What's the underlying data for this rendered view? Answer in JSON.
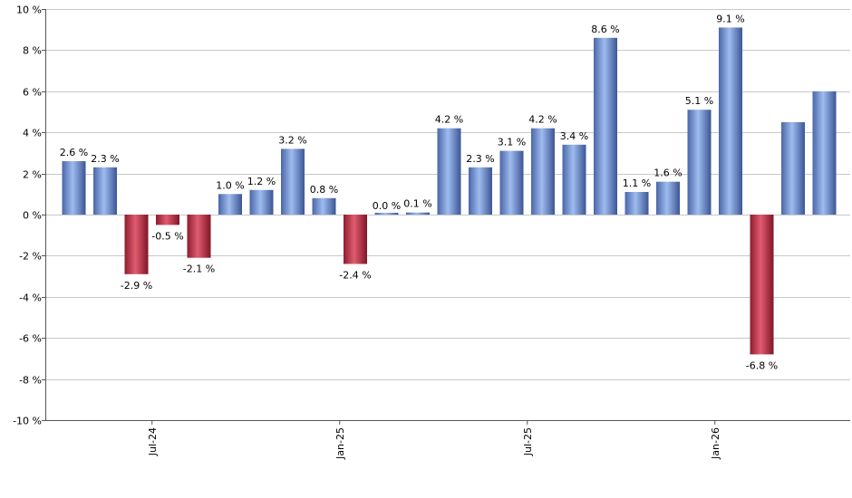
{
  "chart_data": {
    "type": "bar",
    "title": "",
    "xlabel": "",
    "ylabel": "",
    "ylim": [
      -10,
      10
    ],
    "y_ticks": [
      -10,
      -8,
      -6,
      -4,
      -2,
      0,
      2,
      4,
      6,
      8,
      10
    ],
    "y_tick_suffix": " %",
    "grid": true,
    "legend": "none",
    "x_tick_labels": [
      {
        "label": "Jul-24",
        "index": 2.5
      },
      {
        "label": "Jan-25",
        "index": 8.5
      },
      {
        "label": "Jul-25",
        "index": 14.5
      },
      {
        "label": "Jan-26",
        "index": 20.5
      }
    ],
    "values": [
      2.6,
      2.3,
      -2.9,
      -0.5,
      -2.1,
      1.0,
      1.2,
      3.2,
      0.8,
      -2.4,
      0.0,
      0.1,
      4.2,
      2.3,
      3.1,
      4.2,
      3.4,
      8.6,
      1.1,
      1.6,
      5.1,
      9.1,
      -6.8,
      4.5,
      6.0
    ],
    "labels": [
      "2.6 %",
      "2.3 %",
      "-2.9 %",
      "-0.5 %",
      "-2.1 %",
      "1.0 %",
      "1.2 %",
      "3.2 %",
      "0.8 %",
      "-2.4 %",
      "0.0 %",
      "0.1 %",
      "4.2 %",
      "2.3 %",
      "3.1 %",
      "4.2 %",
      "3.4 %",
      "8.6 %",
      "1.1 %",
      "1.6 %",
      "5.1 %",
      "9.1 %",
      "-6.8 %",
      "4.5 %",
      "6.0 %"
    ],
    "show_label": [
      true,
      true,
      true,
      true,
      true,
      true,
      true,
      true,
      true,
      true,
      true,
      true,
      true,
      true,
      true,
      true,
      true,
      true,
      true,
      true,
      true,
      true,
      true,
      false,
      false
    ],
    "colors": {
      "positive": "#7f9fdc",
      "negative": "#c8344a"
    }
  }
}
